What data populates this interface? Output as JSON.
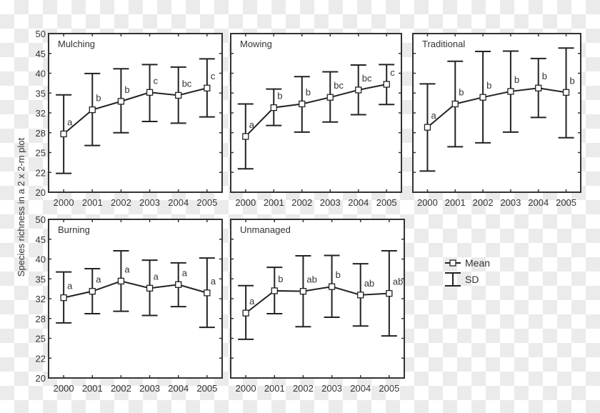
{
  "chart_data": {
    "type": "line",
    "ylabel": "Species richness in a 2 x 2-m plot",
    "xlabel": "",
    "y_scale": "log",
    "ylim": [
      20,
      50
    ],
    "y_ticks": [
      20,
      22,
      25,
      28,
      32,
      35,
      40,
      45,
      50
    ],
    "grid": false,
    "legend_placement": "right",
    "legend": [
      {
        "label": "Mean",
        "symbol": "line-with-square-marker"
      },
      {
        "label": "SD",
        "symbol": "error-bar"
      }
    ],
    "x": [
      "2000",
      "2001",
      "2002",
      "2003",
      "2004",
      "2005"
    ],
    "panels": [
      {
        "title": "Mulching",
        "mean": [
          28.0,
          32.2,
          33.8,
          35.6,
          35.0,
          36.5
        ],
        "sd_upper": [
          35.1,
          39.7,
          40.8,
          41.8,
          41.2,
          43.2
        ],
        "sd_lower": [
          22.3,
          26.2,
          28.2,
          30.1,
          29.8,
          30.9
        ],
        "letters": [
          "a",
          "b",
          "b",
          "c",
          "bc",
          "c"
        ]
      },
      {
        "title": "Mowing",
        "mean": [
          27.6,
          32.6,
          33.3,
          34.6,
          36.1,
          37.3
        ],
        "sd_upper": [
          33.3,
          36.3,
          39.0,
          40.1,
          41.7,
          41.8
        ],
        "sd_lower": [
          22.9,
          29.4,
          28.3,
          30.0,
          31.3,
          33.2
        ],
        "letters": [
          "a",
          "b",
          "b",
          "bc",
          "bc",
          "c"
        ]
      },
      {
        "title": "Traditional",
        "mean": [
          29.1,
          33.3,
          34.6,
          35.8,
          36.5,
          35.6
        ],
        "sd_upper": [
          37.4,
          42.6,
          45.1,
          45.2,
          43.3,
          46.0
        ],
        "sd_lower": [
          22.6,
          26.0,
          26.6,
          28.3,
          30.8,
          27.4
        ],
        "letters": [
          "a",
          "b",
          "b",
          "b",
          "b",
          "b"
        ]
      },
      {
        "title": "Burning",
        "mean": [
          31.8,
          33.0,
          35.0,
          33.6,
          34.3,
          32.7
        ],
        "sd_upper": [
          36.9,
          37.6,
          41.7,
          39.5,
          38.9,
          40.0
        ],
        "sd_lower": [
          27.5,
          29.0,
          29.4,
          28.7,
          30.2,
          26.8
        ],
        "letters": [
          "a",
          "a",
          "a",
          "a",
          "a",
          "a"
        ]
      },
      {
        "title": "Unmanaged",
        "mean": [
          29.1,
          33.1,
          33.0,
          33.9,
          32.3,
          32.6
        ],
        "sd_upper": [
          34.1,
          37.9,
          40.5,
          40.6,
          38.7,
          41.7
        ],
        "sd_lower": [
          25.0,
          29.0,
          26.9,
          28.4,
          27.0,
          25.5
        ],
        "letters": [
          "a",
          "b",
          "ab",
          "b",
          "ab",
          "ab"
        ]
      }
    ],
    "colors": {
      "line": "#222222",
      "marker_fill": "#ffffff",
      "text": "#333333"
    }
  }
}
